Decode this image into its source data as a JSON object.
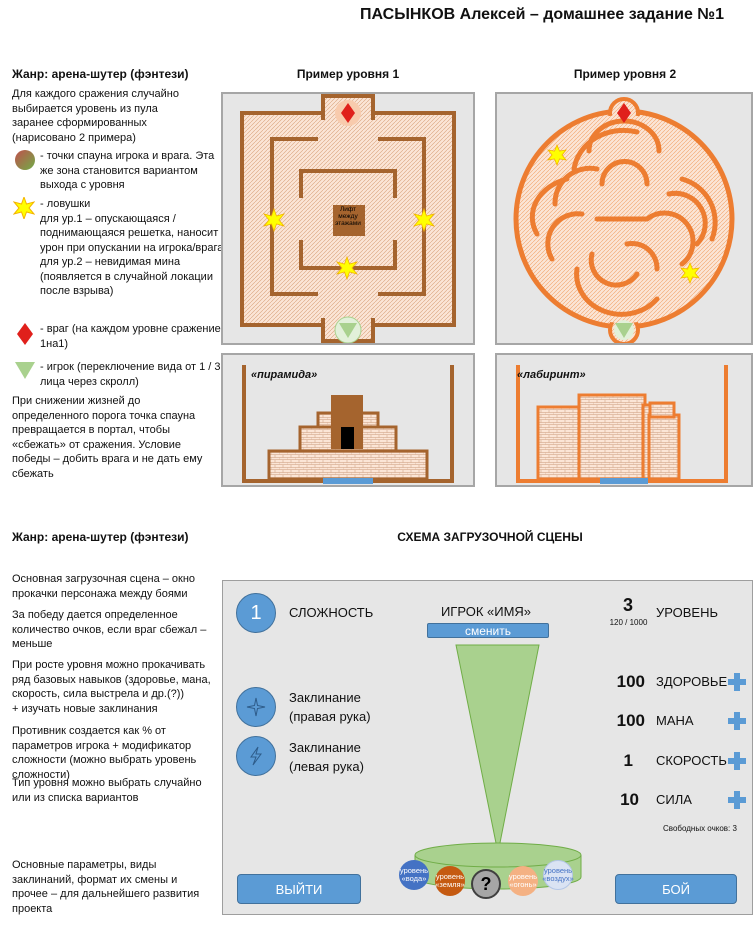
{
  "title": "ПАСЫНКОВ Алексей – домашнее задание №1",
  "top_section": {
    "genre": "Жанр: арена-шутер (фэнтези)",
    "intro": "Для каждого сражения случайно выбирается уровень из пула заранее сформированных (нарисовано 2 примера)",
    "legend": [
      {
        "icon": "spawn-point-icon",
        "text": "- точки спауна игрока и врага. Эта же зона становится вариантом выхода с уровня"
      },
      {
        "icon": "trap-burst-icon",
        "text": "- ловушки\nдля ур.1 – опускающаяся / поднимающаяся решетка, наносит урон при опускании на игрока/врага\nдля ур.2 – невидимая мина (появляется в случайной локации после взрыва)"
      },
      {
        "icon": "enemy-diamond-icon",
        "text": "- враг (на каждом уровне сражение 1на1)"
      },
      {
        "icon": "player-triangle-icon",
        "text": "- игрок (переключение вида от 1 / 3 лица через скролл)"
      }
    ],
    "outro": "При снижении жизней до определенного порога точка спауна превращается в портал, чтобы «сбежать» от сражения. Условие победы – добить врага и не дать ему сбежать",
    "level1_caption": "Пример уровня 1",
    "level2_caption": "Пример уровня 2",
    "lift_label": "Лифт между этажами",
    "level1_side_label": "«пирамида»",
    "level2_side_label": "«лабиринт»"
  },
  "bottom_section": {
    "genre": "Жанр: арена-шутер (фэнтези)",
    "scheme_title": "СХЕМА ЗАГРУЗОЧНОЙ СЦЕНЫ",
    "notes": [
      "Основная загрузочная сцена – окно прокачки персонажа между боями",
      "За победу дается определенное количество очков, если враг сбежал – меньше",
      "При росте уровня можно прокачивать ряд базовых навыков (здоровье, мана, скорость, сила выстрела и др.(?))\n+ изучать новые заклинания",
      "Противник создается как % от параметров игрока + модификатор сложности (можно выбрать уровень сложности)",
      "Тип уровня можно выбрать случайно или из списка вариантов",
      "Основные параметры, виды заклинаний, формат их смены и прочее – для дальнейшего развития проекта"
    ]
  },
  "scene": {
    "difficulty_value": "1",
    "difficulty_label": "СЛОЖНОСТЬ",
    "spell_right": "Заклинание\n(правая рука)",
    "spell_left": "Заклинание\n(левая рука)",
    "player_name": "ИГРОК «ИМЯ»",
    "change_button": "сменить",
    "level_value": "3",
    "level_progress": "120 / 1000",
    "level_label": "УРОВЕНЬ",
    "stats": [
      {
        "value": "100",
        "label": "ЗДОРОВЬЕ"
      },
      {
        "value": "100",
        "label": "МАНА"
      },
      {
        "value": "1",
        "label": "СКОРОСТЬ"
      },
      {
        "value": "10",
        "label": "СИЛА"
      }
    ],
    "free_points": "Свободных очков: 3",
    "exit_button": "ВЫЙТИ",
    "fight_button": "БОЙ",
    "levels": [
      {
        "label": "уровень «вода»",
        "color": "#4472c4"
      },
      {
        "label": "уровень «земля»",
        "color": "#c55a11"
      },
      {
        "label": "?",
        "color": "#a6a6a6"
      },
      {
        "label": "уровень «огонь»",
        "color": "#f4b183"
      },
      {
        "label": "уровень «воздух»",
        "color": "#dae3f3"
      }
    ]
  },
  "colors": {
    "accent": "#5b9bd5",
    "wall_brown": "#a5642e",
    "wall_orange": "#ed7d31",
    "cone_green": "#a9d18e"
  }
}
